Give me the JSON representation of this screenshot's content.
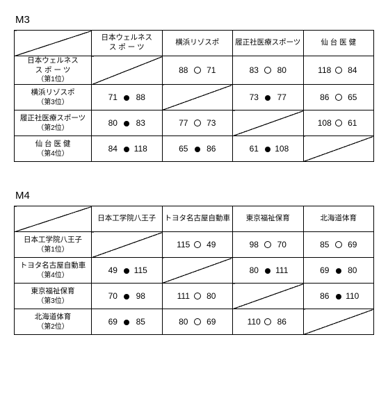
{
  "sections": [
    {
      "title": "M3",
      "col_headers": [
        "日本ウェルネス\nス ポ ー ツ",
        "横浜リゾスポ",
        "履正社医療スポーツ",
        "仙 台 医 健"
      ],
      "row_headers": [
        {
          "name": "日本ウェルネス\nス ポ ー ツ",
          "rank": "（第1位）"
        },
        {
          "name": "横浜リゾスポ",
          "rank": "（第3位）"
        },
        {
          "name": "履正社医療スポーツ",
          "rank": "（第2位）"
        },
        {
          "name": "仙 台 医 健",
          "rank": "（第4位）"
        }
      ],
      "cells": [
        [
          null,
          {
            "l": "88",
            "m": "o",
            "r": "71"
          },
          {
            "l": "83",
            "m": "o",
            "r": "80"
          },
          {
            "l": "118",
            "m": "o",
            "r": "84"
          }
        ],
        [
          {
            "l": "71",
            "m": "f",
            "r": "88"
          },
          null,
          {
            "l": "73",
            "m": "f",
            "r": "77"
          },
          {
            "l": "86",
            "m": "o",
            "r": "65"
          }
        ],
        [
          {
            "l": "80",
            "m": "f",
            "r": "83"
          },
          {
            "l": "77",
            "m": "o",
            "r": "73"
          },
          null,
          {
            "l": "108",
            "m": "o",
            "r": "61"
          }
        ],
        [
          {
            "l": "84",
            "m": "f",
            "r": "118"
          },
          {
            "l": "65",
            "m": "f",
            "r": "86"
          },
          {
            "l": "61",
            "m": "f",
            "r": "108"
          },
          null
        ]
      ]
    },
    {
      "title": "M4",
      "col_headers": [
        "日本工学院八王子",
        "トヨタ名古屋自動車",
        "東京福祉保育",
        "北海道体育"
      ],
      "row_headers": [
        {
          "name": "日本工学院八王子",
          "rank": "（第1位）"
        },
        {
          "name": "トヨタ名古屋自動車",
          "rank": "（第4位）"
        },
        {
          "name": "東京福祉保育",
          "rank": "（第3位）"
        },
        {
          "name": "北海道体育",
          "rank": "（第2位）"
        }
      ],
      "cells": [
        [
          null,
          {
            "l": "115",
            "m": "o",
            "r": "49"
          },
          {
            "l": "98",
            "m": "o",
            "r": "70"
          },
          {
            "l": "85",
            "m": "o",
            "r": "69"
          }
        ],
        [
          {
            "l": "49",
            "m": "f",
            "r": "115"
          },
          null,
          {
            "l": "80",
            "m": "f",
            "r": "111"
          },
          {
            "l": "69",
            "m": "f",
            "r": "80"
          }
        ],
        [
          {
            "l": "70",
            "m": "f",
            "r": "98"
          },
          {
            "l": "111",
            "m": "o",
            "r": "80"
          },
          null,
          {
            "l": "86",
            "m": "f",
            "r": "110"
          }
        ],
        [
          {
            "l": "69",
            "m": "f",
            "r": "85"
          },
          {
            "l": "80",
            "m": "o",
            "r": "69"
          },
          {
            "l": "110",
            "m": "o",
            "r": "86"
          },
          null
        ]
      ]
    }
  ]
}
